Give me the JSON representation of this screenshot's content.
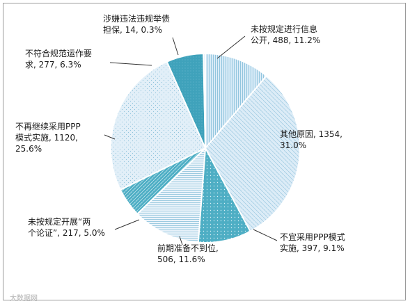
{
  "chart_data": {
    "type": "pie",
    "slices": [
      {
        "label": "未按规定进行信息公开",
        "lines": [
          "未按规定进行信息",
          "公开, 488, 11.2%"
        ],
        "value": 488,
        "percent": 11.2,
        "color": "#d9ebf7",
        "pattern": "vlines"
      },
      {
        "label": "其他原因",
        "lines": [
          "其他原因, 1354,",
          "31.0%"
        ],
        "value": 1354,
        "percent": 31.0,
        "color": "#d9ebf7",
        "pattern": "hatch"
      },
      {
        "label": "不宜采用PPP模式实施",
        "lines": [
          "不宜采用PPP模式",
          "实施, 397, 9.1%"
        ],
        "value": 397,
        "percent": 9.1,
        "color": "#4eaec4",
        "pattern": "dots"
      },
      {
        "label": "前期准备不到位",
        "lines": [
          "前期准备不到位,",
          "506, 11.6%"
        ],
        "value": 506,
        "percent": 11.6,
        "color": "#eaf3fa",
        "pattern": "hlines"
      },
      {
        "label": "未按规定开展“两个论证”",
        "lines": [
          "未按规定开展“两",
          "个论证”, 217, 5.0%"
        ],
        "value": 217,
        "percent": 5.0,
        "color": "#4eaec4",
        "pattern": "diag"
      },
      {
        "label": "不再继续采用PPP模式实施",
        "lines": [
          "不再继续采用PPP",
          "模式实施, 1120,",
          "25.6%"
        ],
        "value": 1120,
        "percent": 25.6,
        "color": "#e2eff8",
        "pattern": "dots2"
      },
      {
        "label": "不符合规范运作要求",
        "lines": [
          "不符合规范运作要",
          "求, 277, 6.3%"
        ],
        "value": 277,
        "percent": 6.3,
        "color": "#3fa2bb",
        "pattern": "solid"
      },
      {
        "label": "涉嫌违法违规举债担保",
        "lines": [
          "涉嫌违法违规举债",
          "担保, 14, 0.3%"
        ],
        "value": 14,
        "percent": 0.3,
        "color": "#d9ebf7",
        "pattern": "none"
      }
    ]
  },
  "watermark": "大数据网"
}
